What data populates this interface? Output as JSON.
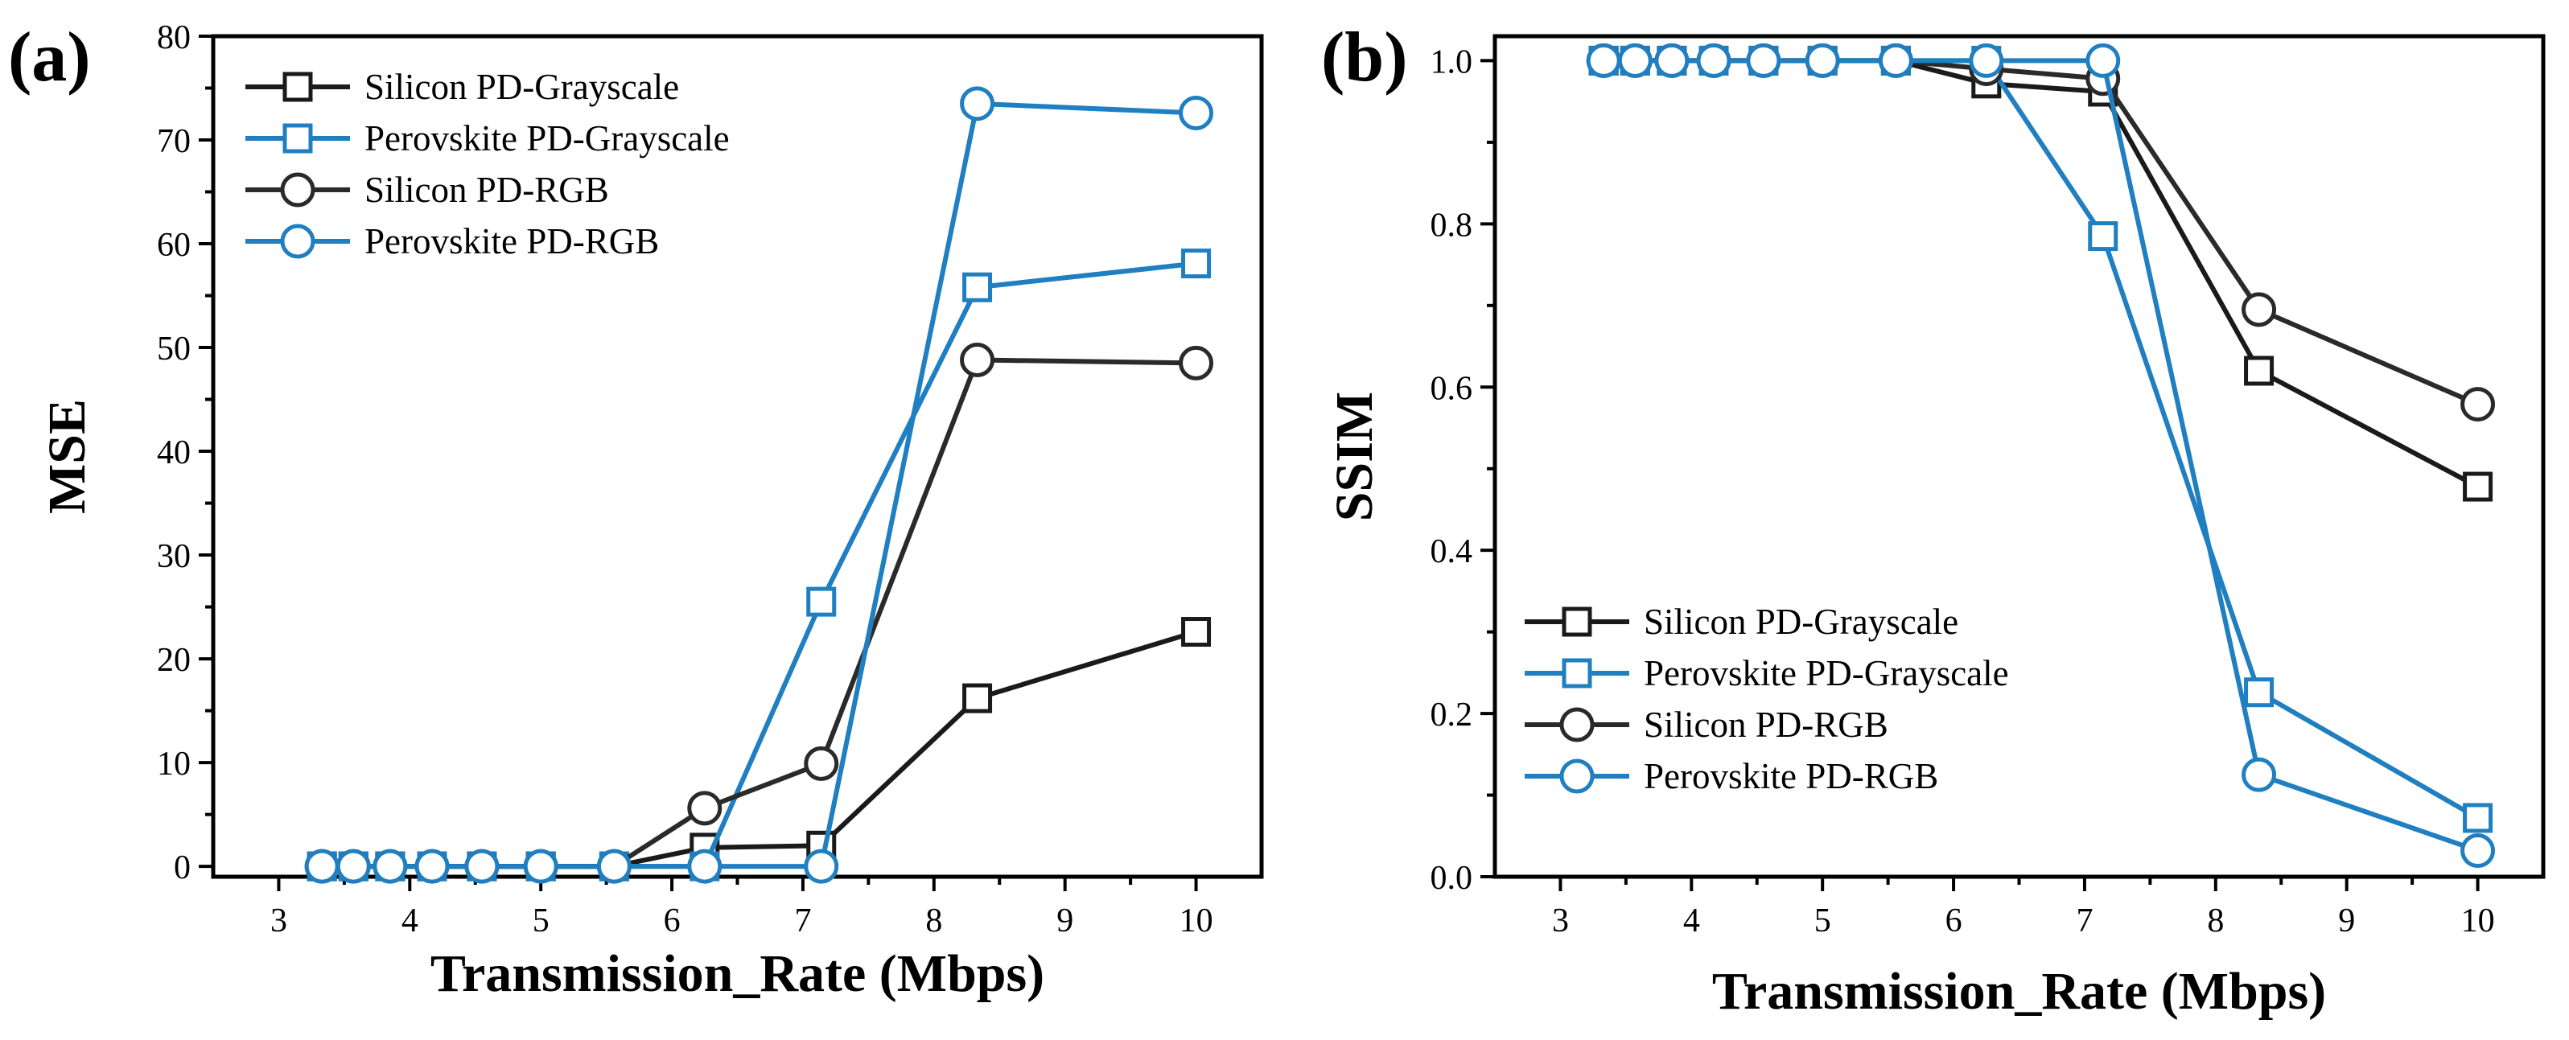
{
  "chart_data": [
    {
      "type": "line",
      "panel_label": "(a)",
      "xlabel": "Transmission_Rate (Mbps)",
      "ylabel": "MSE",
      "xlim": [
        2.5,
        10.5
      ],
      "ylim": [
        -1,
        80
      ],
      "xticks": [
        3,
        4,
        5,
        6,
        7,
        8,
        9,
        10
      ],
      "yticks": [
        0,
        10,
        20,
        30,
        40,
        50,
        60,
        70,
        80
      ],
      "x": [
        3.33,
        3.57,
        3.85,
        4.17,
        4.55,
        5.0,
        5.56,
        6.25,
        7.14,
        8.33,
        10.0
      ],
      "legend_position": "top-left",
      "series": [
        {
          "name": "Silicon PD-Grayscale",
          "color": "#1a1a1a",
          "marker": "square",
          "values": [
            0,
            0,
            0,
            0,
            0,
            0,
            0,
            1.8,
            2.0,
            16.2,
            22.6
          ]
        },
        {
          "name": "Perovskite PD-Grayscale",
          "color": "#1f7fc0",
          "marker": "square",
          "values": [
            0,
            0,
            0,
            0,
            0,
            0,
            0,
            0,
            25.5,
            55.8,
            58.1
          ]
        },
        {
          "name": "Silicon PD-RGB",
          "color": "#2a2a2a",
          "marker": "circle",
          "values": [
            0,
            0,
            0,
            0,
            0,
            0,
            0,
            5.6,
            9.9,
            48.8,
            48.5
          ]
        },
        {
          "name": "Perovskite PD-RGB",
          "color": "#1f7fc0",
          "marker": "circle",
          "values": [
            0,
            0,
            0,
            0,
            0,
            0,
            0,
            0,
            0,
            73.5,
            72.6
          ]
        }
      ]
    },
    {
      "type": "line",
      "panel_label": "(b)",
      "xlabel": "Transmission_Rate (Mbps)",
      "ylabel": "SSIM",
      "xlim": [
        2.5,
        10.5
      ],
      "ylim": [
        0,
        1.03
      ],
      "xticks": [
        3,
        4,
        5,
        6,
        7,
        8,
        9,
        10
      ],
      "yticks": [
        0.0,
        0.2,
        0.4,
        0.6,
        0.8,
        1.0
      ],
      "ytick_labels": [
        "0.0",
        "0.2",
        "0.4",
        "0.6",
        "0.8",
        "1.0"
      ],
      "x": [
        3.33,
        3.57,
        3.85,
        4.17,
        4.55,
        5.0,
        5.56,
        6.25,
        7.14,
        8.33,
        10.0
      ],
      "legend_position": "bottom-left",
      "series": [
        {
          "name": "Silicon PD-Grayscale",
          "color": "#1a1a1a",
          "marker": "square",
          "values": [
            1.0,
            1.0,
            1.0,
            1.0,
            1.0,
            1.0,
            1.0,
            0.972,
            0.962,
            0.62,
            0.478
          ]
        },
        {
          "name": "Perovskite PD-Grayscale",
          "color": "#1f7fc0",
          "marker": "square",
          "values": [
            1.0,
            1.0,
            1.0,
            1.0,
            1.0,
            1.0,
            1.0,
            1.0,
            0.785,
            0.226,
            0.072
          ]
        },
        {
          "name": "Silicon PD-RGB",
          "color": "#2a2a2a",
          "marker": "circle",
          "values": [
            1.0,
            1.0,
            1.0,
            1.0,
            1.0,
            1.0,
            1.0,
            0.99,
            0.978,
            0.695,
            0.579
          ]
        },
        {
          "name": "Perovskite PD-RGB",
          "color": "#1f7fc0",
          "marker": "circle",
          "values": [
            1.0,
            1.0,
            1.0,
            1.0,
            1.0,
            1.0,
            1.0,
            1.0,
            1.0,
            0.125,
            0.032
          ]
        }
      ]
    }
  ]
}
